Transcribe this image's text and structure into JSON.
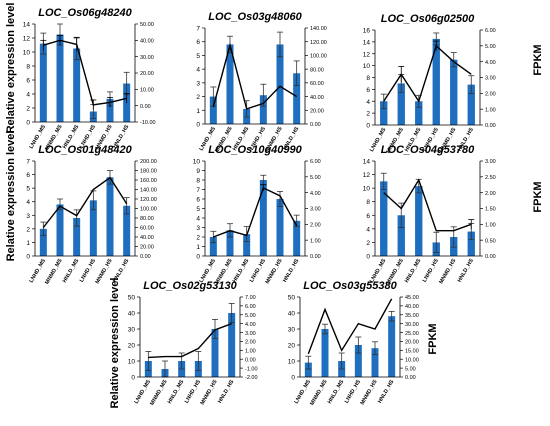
{
  "figure": {
    "left_axis_label": "Relative expression level",
    "right_axis_label": "FPKM"
  },
  "colors": {
    "bar": "#1f6fc0",
    "line": "#000000",
    "axis": "#000000"
  },
  "chart_data": [
    {
      "type": "bar",
      "title": "LOC_Os06g48240",
      "categories": [
        "LNHD_MS",
        "MNMD_MS",
        "HNLD_MS",
        "LNHD_HS",
        "MNMD_HS",
        "HNLD_HS"
      ],
      "left_axis": {
        "min": 0,
        "max": 14,
        "step": 2,
        "ticks": [
          "0",
          "2",
          "4",
          "6",
          "8",
          "10",
          "12",
          "14"
        ]
      },
      "right_axis": {
        "min": -10,
        "max": 50,
        "step": 10,
        "ticks": [
          "-10.00",
          "0.00",
          "10.00",
          "20.00",
          "30.00",
          "40.00",
          "50.00"
        ]
      },
      "series": [
        {
          "kind": "bar",
          "axis": "left",
          "values": [
            11.2,
            12.5,
            10.5,
            1.5,
            3.3,
            5.5
          ],
          "errors": [
            1.5,
            1.5,
            1.6,
            1.0,
            1.0,
            1.6
          ]
        },
        {
          "kind": "line",
          "axis": "right",
          "values": [
            37.0,
            40.0,
            37.5,
            0.5,
            2.0,
            4.5
          ],
          "errors": [
            3.0,
            3.0,
            4.0,
            3.0,
            3.0,
            3.0
          ]
        }
      ]
    },
    {
      "type": "bar",
      "title": "LOC_Os03g48060",
      "categories": [
        "LNHD_MS",
        "MNMD_MS",
        "HNLD_MS",
        "LNHD_HS",
        "MNMD_HS",
        "HNLD_HS"
      ],
      "left_axis": {
        "min": 0,
        "max": 7,
        "step": 1,
        "ticks": [
          "0",
          "1",
          "2",
          "3",
          "4",
          "5",
          "6",
          "7"
        ]
      },
      "right_axis": {
        "min": 0,
        "max": 140,
        "step": 20,
        "ticks": [
          "0.00",
          "20.00",
          "40.00",
          "60.00",
          "80.00",
          "100.00",
          "120.00",
          "140.00"
        ]
      },
      "series": [
        {
          "kind": "bar",
          "axis": "left",
          "values": [
            2.0,
            5.8,
            1.1,
            2.1,
            5.8,
            3.7
          ],
          "errors": [
            0.7,
            0.6,
            0.6,
            0.8,
            0.9,
            0.9
          ]
        },
        {
          "kind": "line",
          "axis": "right",
          "values": [
            25,
            115,
            22,
            30,
            55,
            40
          ],
          "errors": [
            0,
            0,
            0,
            0,
            0,
            0
          ]
        }
      ]
    },
    {
      "type": "bar",
      "title": "LOC_Os06g02500",
      "categories": [
        "LNHD_MS",
        "MNMD_MS",
        "HNLD_MS",
        "LNHD_HS",
        "MNMD_HS",
        "HNLD_HS"
      ],
      "left_axis": {
        "min": 0,
        "max": 16,
        "step": 2,
        "ticks": [
          "0",
          "2",
          "4",
          "6",
          "8",
          "10",
          "12",
          "14",
          "16"
        ]
      },
      "right_axis": {
        "min": 0,
        "max": 6,
        "step": 1,
        "ticks": [
          "0.00",
          "1.00",
          "2.00",
          "3.00",
          "4.00",
          "5.00",
          "6.00"
        ]
      },
      "series": [
        {
          "kind": "bar",
          "axis": "left",
          "values": [
            4.0,
            7.0,
            4.0,
            14.5,
            11.0,
            6.8
          ],
          "errors": [
            1.2,
            1.5,
            1.0,
            1.0,
            1.2,
            1.5
          ]
        },
        {
          "kind": "line",
          "axis": "right",
          "values": [
            1.5,
            3.2,
            1.5,
            5.0,
            4.0,
            3.2
          ],
          "errors": [
            0,
            0.5,
            0,
            0.3,
            0,
            0
          ]
        }
      ]
    },
    {
      "type": "bar",
      "title": "LOC_Os01g48420",
      "categories": [
        "LNHD_MS",
        "MNMD_MS",
        "HNLD_MS",
        "LNHD_HS",
        "MNMD_HS",
        "HNLD_HS"
      ],
      "left_axis": {
        "min": 0,
        "max": 7,
        "step": 1,
        "ticks": [
          "0",
          "1",
          "2",
          "3",
          "4",
          "5",
          "6",
          "7"
        ]
      },
      "right_axis": {
        "min": 0,
        "max": 200,
        "step": 20,
        "ticks": [
          "0.00",
          "20.00",
          "40.00",
          "60.00",
          "80.00",
          "100.00",
          "120.00",
          "140.00",
          "160.00",
          "180.00",
          "200.00"
        ]
      },
      "series": [
        {
          "kind": "bar",
          "axis": "left",
          "values": [
            2.0,
            3.8,
            2.8,
            4.1,
            5.8,
            3.7
          ],
          "errors": [
            0.5,
            0.4,
            0.6,
            0.7,
            0.5,
            0.6
          ]
        },
        {
          "kind": "line",
          "axis": "right",
          "values": [
            60,
            105,
            85,
            140,
            165,
            110
          ],
          "errors": [
            0,
            0,
            0,
            0,
            0,
            0
          ]
        }
      ]
    },
    {
      "type": "bar",
      "title": "LOC_Os10g40990",
      "categories": [
        "LNHD_MS",
        "MNMD_MS",
        "HNLD_MS",
        "LNHD_HS",
        "MNMD_HS",
        "HNLD_HS"
      ],
      "left_axis": {
        "min": 0,
        "max": 10,
        "step": 1,
        "ticks": [
          "0",
          "1",
          "2",
          "3",
          "4",
          "5",
          "6",
          "7",
          "8",
          "9",
          "10"
        ]
      },
      "right_axis": {
        "min": 0,
        "max": 6,
        "step": 1,
        "ticks": [
          "0.00",
          "1.00",
          "2.00",
          "3.00",
          "4.00",
          "5.00",
          "6.00"
        ]
      },
      "series": [
        {
          "kind": "bar",
          "axis": "left",
          "values": [
            2.0,
            2.7,
            2.3,
            8.0,
            6.0,
            3.7
          ],
          "errors": [
            0.6,
            0.7,
            0.8,
            0.5,
            0.8,
            0.6
          ]
        },
        {
          "kind": "line",
          "axis": "right",
          "values": [
            1.2,
            1.6,
            1.3,
            4.3,
            3.8,
            1.9
          ],
          "errors": [
            0,
            0,
            0,
            0.2,
            0,
            0
          ]
        }
      ]
    },
    {
      "type": "bar",
      "title": "LOC_Os04g53780",
      "categories": [
        "LNHD_MS",
        "MNMD_MS",
        "HNLD_MS",
        "LNHD_HS",
        "MNMD_HS",
        "HNLD_HS"
      ],
      "left_axis": {
        "min": 0,
        "max": 14,
        "step": 2,
        "ticks": [
          "0",
          "2",
          "4",
          "6",
          "8",
          "10",
          "12",
          "14"
        ]
      },
      "right_axis": {
        "min": 0,
        "max": 3,
        "step": 0.5,
        "ticks": [
          "0.00",
          "0.50",
          "1.00",
          "1.50",
          "2.00",
          "2.50",
          "3.00"
        ]
      },
      "series": [
        {
          "kind": "bar",
          "axis": "left",
          "values": [
            11.0,
            6.0,
            10.3,
            2.0,
            2.8,
            3.6
          ],
          "errors": [
            1.2,
            1.8,
            1.0,
            1.5,
            1.5,
            1.2
          ]
        },
        {
          "kind": "line",
          "axis": "right",
          "values": [
            2.0,
            1.5,
            2.4,
            0.8,
            0.8,
            1.0
          ],
          "errors": [
            0,
            0,
            0,
            0,
            0,
            0.15
          ]
        }
      ]
    },
    {
      "type": "bar",
      "title": "LOC_Os02g53130",
      "categories": [
        "LNHD_MS",
        "MNMD_MS",
        "HNLD_MS",
        "LNHD_HS",
        "MNMD_HS",
        "HNLD_HS"
      ],
      "left_axis": {
        "min": 0,
        "max": 50,
        "step": 10,
        "ticks": [
          "0",
          "10",
          "20",
          "30",
          "40",
          "50"
        ]
      },
      "right_axis": {
        "min": -2,
        "max": 7,
        "step": 1,
        "ticks": [
          "-2.00",
          "-1.00",
          "0.00",
          "1.00",
          "2.00",
          "3.00",
          "4.00",
          "5.00",
          "6.00",
          "7.00"
        ]
      },
      "series": [
        {
          "kind": "bar",
          "axis": "left",
          "values": [
            10.0,
            5.0,
            10.0,
            10.0,
            30.0,
            40.0
          ],
          "errors": [
            6,
            5,
            5,
            6,
            6,
            6
          ]
        },
        {
          "kind": "line",
          "axis": "right",
          "values": [
            0.2,
            0.3,
            0.3,
            1.2,
            3.3,
            4.0
          ],
          "errors": [
            0,
            0,
            0,
            0,
            0,
            0
          ]
        }
      ]
    },
    {
      "type": "bar",
      "title": "LOC_Os03g55380",
      "categories": [
        "LNHD_MS",
        "MNMD_MS",
        "HNLD_MS",
        "LNHD_HS",
        "MNMD_HS",
        "HNLD_HS"
      ],
      "left_axis": {
        "min": 0,
        "max": 50,
        "step": 10,
        "ticks": [
          "0",
          "10",
          "20",
          "30",
          "40",
          "50"
        ]
      },
      "right_axis": {
        "min": 0,
        "max": 45,
        "step": 5,
        "ticks": [
          "0.00",
          "5.00",
          "10.00",
          "15.00",
          "20.00",
          "25.00",
          "30.00",
          "35.00",
          "40.00",
          "45.00"
        ]
      },
      "series": [
        {
          "kind": "bar",
          "axis": "left",
          "values": [
            9.0,
            30.0,
            10.0,
            20.0,
            18.0,
            38.0
          ],
          "errors": [
            4,
            3,
            5,
            5,
            4,
            3
          ]
        },
        {
          "kind": "line",
          "axis": "right",
          "values": [
            13,
            38,
            15,
            30,
            27,
            44
          ],
          "errors": [
            0,
            0,
            0,
            0,
            0,
            0
          ]
        }
      ]
    }
  ]
}
